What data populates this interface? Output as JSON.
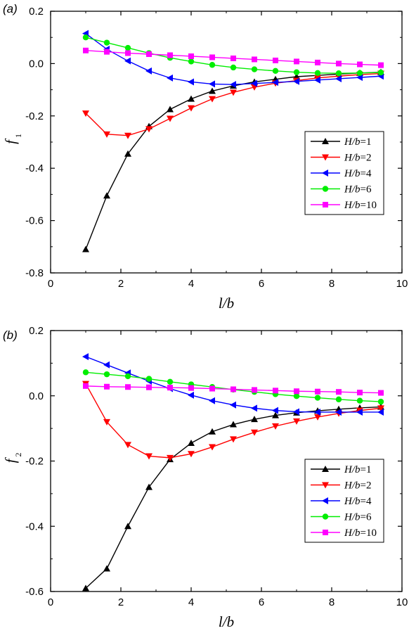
{
  "chart_data": [
    {
      "panel_label": "(a)",
      "type": "line",
      "xlabel": "l/b",
      "ylabel": "f",
      "ylabel_sub": "1",
      "xlim": [
        0,
        10
      ],
      "ylim": [
        -0.8,
        0.2
      ],
      "xticks": [
        0,
        2,
        4,
        6,
        8,
        10
      ],
      "xtick_labels": [
        "0",
        "2",
        "4",
        "6",
        "8",
        "10"
      ],
      "yticks": [
        0.2,
        0.0,
        -0.2,
        -0.4,
        -0.6,
        -0.8
      ],
      "ytick_labels": [
        "0.2",
        "0.0",
        "-0.2",
        "-0.4",
        "-0.6",
        "-0.8"
      ],
      "grid": false,
      "legend_position": "right-middle",
      "x": [
        1.0,
        1.6,
        2.2,
        2.8,
        3.4,
        4.0,
        4.6,
        5.2,
        5.8,
        6.4,
        7.0,
        7.6,
        8.2,
        8.8,
        9.4
      ],
      "series": [
        {
          "name": "H/b=1",
          "name_italic": "H/b",
          "name_rest": "=1",
          "color": "#000000",
          "marker": "triangle-up",
          "values": [
            -0.71,
            -0.505,
            -0.345,
            -0.24,
            -0.175,
            -0.135,
            -0.105,
            -0.085,
            -0.07,
            -0.06,
            -0.05,
            -0.045,
            -0.04,
            -0.036,
            -0.033
          ]
        },
        {
          "name": "H/b=2",
          "name_italic": "H/b",
          "name_rest": "=2",
          "color": "#ff0000",
          "marker": "triangle-down",
          "values": [
            -0.19,
            -0.27,
            -0.275,
            -0.25,
            -0.21,
            -0.17,
            -0.135,
            -0.11,
            -0.09,
            -0.075,
            -0.065,
            -0.055,
            -0.048,
            -0.042,
            -0.038
          ]
        },
        {
          "name": "H/b=4",
          "name_italic": "H/b",
          "name_rest": "=4",
          "color": "#0000ff",
          "marker": "triangle-left",
          "values": [
            0.115,
            0.055,
            0.01,
            -0.028,
            -0.055,
            -0.07,
            -0.078,
            -0.08,
            -0.076,
            -0.072,
            -0.068,
            -0.063,
            -0.058,
            -0.053,
            -0.048
          ]
        },
        {
          "name": "H/b=6",
          "name_italic": "H/b",
          "name_rest": "=6",
          "color": "#00ee00",
          "marker": "circle",
          "values": [
            0.1,
            0.08,
            0.06,
            0.04,
            0.022,
            0.008,
            -0.005,
            -0.015,
            -0.022,
            -0.028,
            -0.033,
            -0.036,
            -0.037,
            -0.036,
            -0.034
          ]
        },
        {
          "name": "H/b=10",
          "name_italic": "H/b",
          "name_rest": "=10",
          "color": "#ff00ff",
          "marker": "square",
          "values": [
            0.05,
            0.045,
            0.04,
            0.036,
            0.032,
            0.028,
            0.024,
            0.02,
            0.016,
            0.012,
            0.008,
            0.004,
            0.0,
            -0.003,
            -0.006
          ]
        }
      ]
    },
    {
      "panel_label": "(b)",
      "type": "line",
      "xlabel": "l/b",
      "ylabel": "f",
      "ylabel_sub": "2",
      "xlim": [
        0,
        10
      ],
      "ylim": [
        -0.6,
        0.2
      ],
      "xticks": [
        0,
        2,
        4,
        6,
        8,
        10
      ],
      "xtick_labels": [
        "0",
        "2",
        "4",
        "6",
        "8",
        "10"
      ],
      "yticks": [
        0.2,
        0.0,
        -0.2,
        -0.4,
        -0.6
      ],
      "ytick_labels": [
        "0.2",
        "0.0",
        "-0.2",
        "-0.4",
        "-0.6"
      ],
      "grid": false,
      "legend_position": "right-lower",
      "x": [
        1.0,
        1.6,
        2.2,
        2.8,
        3.4,
        4.0,
        4.6,
        5.2,
        5.8,
        6.4,
        7.0,
        7.6,
        8.2,
        8.8,
        9.4
      ],
      "series": [
        {
          "name": "H/b=1",
          "name_italic": "H/b",
          "name_rest": "=1",
          "color": "#000000",
          "marker": "triangle-up",
          "values": [
            -0.59,
            -0.53,
            -0.4,
            -0.28,
            -0.195,
            -0.145,
            -0.11,
            -0.088,
            -0.072,
            -0.06,
            -0.052,
            -0.046,
            -0.041,
            -0.037,
            -0.034
          ]
        },
        {
          "name": "H/b=2",
          "name_italic": "H/b",
          "name_rest": "=2",
          "color": "#ff0000",
          "marker": "triangle-down",
          "values": [
            0.037,
            -0.08,
            -0.15,
            -0.185,
            -0.19,
            -0.178,
            -0.157,
            -0.133,
            -0.112,
            -0.093,
            -0.078,
            -0.065,
            -0.054,
            -0.045,
            -0.038
          ]
        },
        {
          "name": "H/b=4",
          "name_italic": "H/b",
          "name_rest": "=4",
          "color": "#0000ff",
          "marker": "triangle-left",
          "values": [
            0.12,
            0.095,
            0.07,
            0.045,
            0.022,
            0.002,
            -0.015,
            -0.028,
            -0.038,
            -0.045,
            -0.049,
            -0.05,
            -0.05,
            -0.05,
            -0.05
          ]
        },
        {
          "name": "H/b=6",
          "name_italic": "H/b",
          "name_rest": "=6",
          "color": "#00ee00",
          "marker": "circle",
          "values": [
            0.072,
            0.066,
            0.06,
            0.052,
            0.043,
            0.035,
            0.027,
            0.019,
            0.012,
            0.005,
            -0.001,
            -0.006,
            -0.011,
            -0.015,
            -0.018
          ]
        },
        {
          "name": "H/b=10",
          "name_italic": "H/b",
          "name_rest": "=10",
          "color": "#ff00ff",
          "marker": "square",
          "values": [
            0.03,
            0.028,
            0.027,
            0.026,
            0.025,
            0.024,
            0.022,
            0.02,
            0.018,
            0.016,
            0.014,
            0.013,
            0.012,
            0.01,
            0.009
          ]
        }
      ]
    }
  ]
}
